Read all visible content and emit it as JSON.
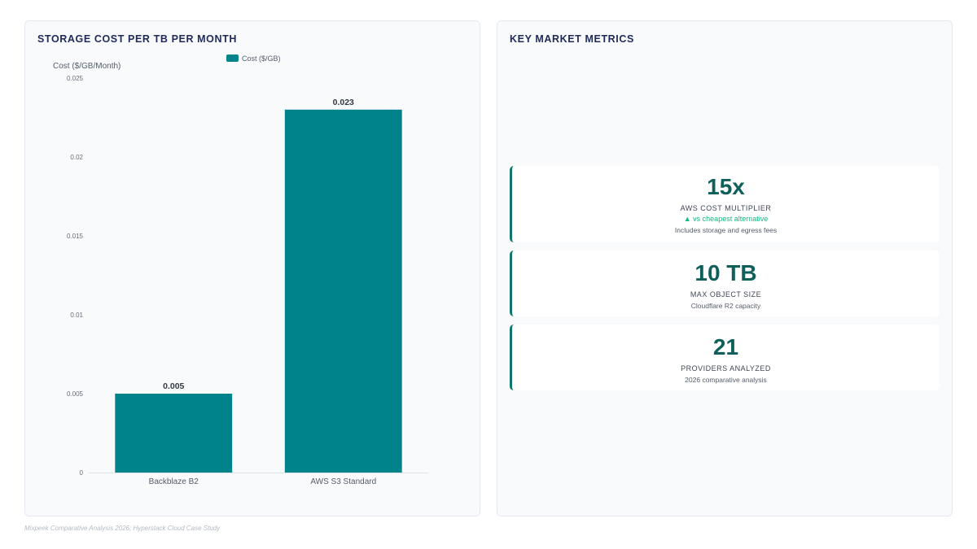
{
  "chart_panel": {
    "title": "STORAGE COST PER TB PER MONTH"
  },
  "chart_data": {
    "type": "bar",
    "categories": [
      "Backblaze B2",
      "AWS S3 Standard"
    ],
    "series": [
      {
        "name": "Cost ($/GB)",
        "values": [
          0.005,
          0.023
        ]
      }
    ],
    "data_labels": [
      "0.005",
      "0.023"
    ],
    "ylabel": "Cost ($/GB/Month)",
    "xlabel": "",
    "ylim": [
      0,
      0.025
    ],
    "yticks": [
      "0",
      "0.005",
      "0.01",
      "0.015",
      "0.02",
      "0.025"
    ],
    "legend": "top",
    "grid": false,
    "colors": {
      "bar": "#00838a"
    }
  },
  "metrics_panel": {
    "title": "KEY MARKET METRICS",
    "cards": [
      {
        "value": "15x",
        "label": "AWS COST MULTIPLIER",
        "trend": "▲ vs cheapest alternative",
        "note": "Includes storage and egress fees"
      },
      {
        "value": "10 TB",
        "label": "MAX OBJECT SIZE",
        "note": "Cloudflare R2 capacity"
      },
      {
        "value": "21",
        "label": "PROVIDERS ANALYZED",
        "note": "2026 comparative analysis"
      }
    ],
    "accent_color": "#0f766e",
    "trend_color": "#10b981"
  },
  "footer": {
    "source": "Mixpeek Comparative Analysis 2026; Hyperstack Cloud Case Study"
  }
}
